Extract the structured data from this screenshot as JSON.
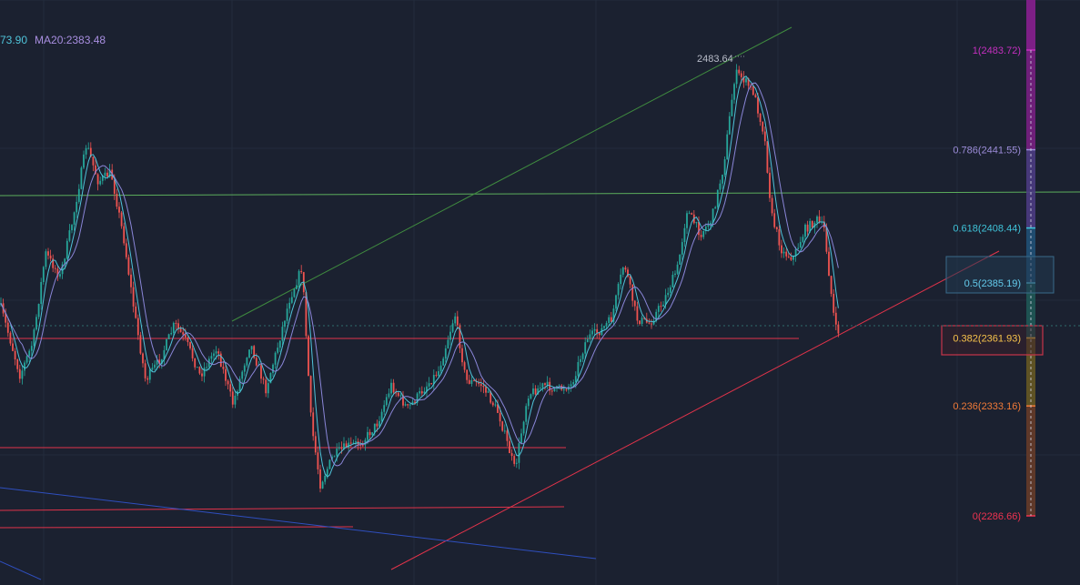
{
  "indicator": {
    "ma_value": "73.90",
    "ma20_label": "MA20:2383.48",
    "ma_color": "#4fc3d9",
    "ma20_color": "#a88ee0"
  },
  "colors": {
    "background": "#1b2130",
    "grid": "#232c3c",
    "candle_up": "#26a69a",
    "candle_down": "#ef5350",
    "ma_fast": "#4fc3d9",
    "ma_slow": "#8a86d8",
    "support_line": "#e0334a",
    "resistance_line": "#5cae5c",
    "channel_line": "#3f8a3f",
    "downtrend_line": "#2f4fbf"
  },
  "peak_label": "2483.64",
  "chart_data": {
    "type": "line",
    "title": "",
    "xlabel": "",
    "ylabel": "",
    "ylim": [
      2268,
      2498
    ],
    "grid": true,
    "fibonacci": [
      {
        "ratio": "1",
        "price": 2483.72,
        "label": "1(2483.72)",
        "color": "#c42fbf",
        "band": "#7d1f86"
      },
      {
        "ratio": "0.786",
        "price": 2441.55,
        "label": "0.786(2441.55)",
        "color": "#9c8cd8",
        "band": "#4e3c86"
      },
      {
        "ratio": "0.618",
        "price": 2408.44,
        "label": "0.618(2408.44)",
        "color": "#3fc3d9",
        "band": "#20527a"
      },
      {
        "ratio": "0.5",
        "price": 2385.19,
        "label": "0.5(2385.19)",
        "color": "#5fc0e0",
        "band": "#1e5a58"
      },
      {
        "ratio": "0.382",
        "price": 2361.93,
        "label": "0.382(2361.93)",
        "color": "#e8b84a",
        "band": "#6a5a22"
      },
      {
        "ratio": "0.236",
        "price": 2333.16,
        "label": "0.236(2333.16)",
        "color": "#f07a38",
        "band": "#6a3c28"
      },
      {
        "ratio": "0",
        "price": 2286.66,
        "label": "0(2286.66)",
        "color": "#ef3350",
        "band": "#6a2a30"
      }
    ],
    "price_path": [
      [
        0,
        2376
      ],
      [
        12,
        2360
      ],
      [
        22,
        2346
      ],
      [
        36,
        2360
      ],
      [
        50,
        2398
      ],
      [
        66,
        2388
      ],
      [
        80,
        2412
      ],
      [
        95,
        2444
      ],
      [
        108,
        2428
      ],
      [
        122,
        2432
      ],
      [
        136,
        2404
      ],
      [
        148,
        2372
      ],
      [
        160,
        2344
      ],
      [
        176,
        2353
      ],
      [
        192,
        2368
      ],
      [
        205,
        2360
      ],
      [
        220,
        2346
      ],
      [
        238,
        2358
      ],
      [
        256,
        2334
      ],
      [
        275,
        2360
      ],
      [
        292,
        2340
      ],
      [
        305,
        2358
      ],
      [
        318,
        2378
      ],
      [
        332,
        2392
      ],
      [
        342,
        2326
      ],
      [
        352,
        2300
      ],
      [
        366,
        2312
      ],
      [
        380,
        2316
      ],
      [
        398,
        2318
      ],
      [
        415,
        2326
      ],
      [
        430,
        2342
      ],
      [
        448,
        2332
      ],
      [
        465,
        2340
      ],
      [
        482,
        2348
      ],
      [
        500,
        2372
      ],
      [
        512,
        2344
      ],
      [
        530,
        2342
      ],
      [
        548,
        2330
      ],
      [
        566,
        2306
      ],
      [
        580,
        2338
      ],
      [
        598,
        2342
      ],
      [
        612,
        2340
      ],
      [
        628,
        2342
      ],
      [
        645,
        2362
      ],
      [
        660,
        2365
      ],
      [
        672,
        2370
      ],
      [
        686,
        2394
      ],
      [
        700,
        2370
      ],
      [
        714,
        2368
      ],
      [
        730,
        2378
      ],
      [
        745,
        2392
      ],
      [
        755,
        2416
      ],
      [
        770,
        2406
      ],
      [
        782,
        2412
      ],
      [
        795,
        2434
      ],
      [
        808,
        2474
      ],
      [
        816,
        2472
      ],
      [
        828,
        2466
      ],
      [
        840,
        2448
      ],
      [
        848,
        2414
      ],
      [
        860,
        2398
      ],
      [
        872,
        2396
      ],
      [
        885,
        2408
      ],
      [
        898,
        2412
      ],
      [
        906,
        2408
      ],
      [
        912,
        2386
      ],
      [
        918,
        2366
      ],
      [
        924,
        2364
      ]
    ],
    "price_axis_x": 1133,
    "levels_ui": {
      "fib_labels_right": 1122
    }
  }
}
